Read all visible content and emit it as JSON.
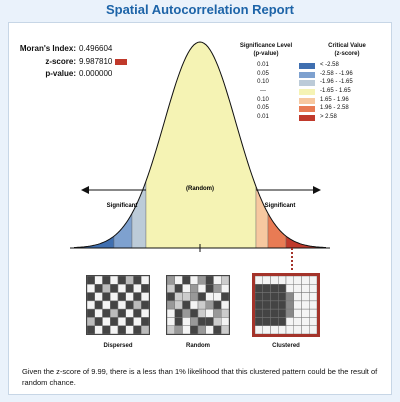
{
  "title": "Spatial Autocorrelation Report",
  "stats": {
    "morans_label": "Moran's Index:",
    "morans_value": "0.496604",
    "z_label": "z-score:",
    "z_value": "9.987810",
    "p_label": "p-value:",
    "p_value": "0.000000"
  },
  "legend": {
    "sig_header": "Significance Level\n(p-value)",
    "crit_header": "Critical Value\n(z-score)",
    "rows": [
      {
        "p": "0.01",
        "color": "#3f6fb0",
        "range": "< -2.58"
      },
      {
        "p": "0.05",
        "color": "#7ea1cf",
        "range": "-2.58 - -1.96"
      },
      {
        "p": "0.10",
        "color": "#bccbd8",
        "range": "-1.96 - -1.65"
      },
      {
        "p": "---",
        "color": "#f5f3b4",
        "range": "-1.65 - 1.65"
      },
      {
        "p": "0.10",
        "color": "#f7c8a0",
        "range": "1.65 - 1.96"
      },
      {
        "p": "0.05",
        "color": "#e87b54",
        "range": "1.96 - 2.58"
      },
      {
        "p": "0.01",
        "color": "#c0392b",
        "range": "> 2.58"
      }
    ]
  },
  "curve": {
    "left_label": "Significant",
    "right_label": "Significant",
    "center_label": "(Random)"
  },
  "maps": [
    {
      "label": "Dispersed"
    },
    {
      "label": "Random"
    },
    {
      "label": "Clustered"
    }
  ],
  "footer": "Given the z-score of 9.99, there is a less than 1% likelihood that this clustered pattern could be the result of random chance."
}
